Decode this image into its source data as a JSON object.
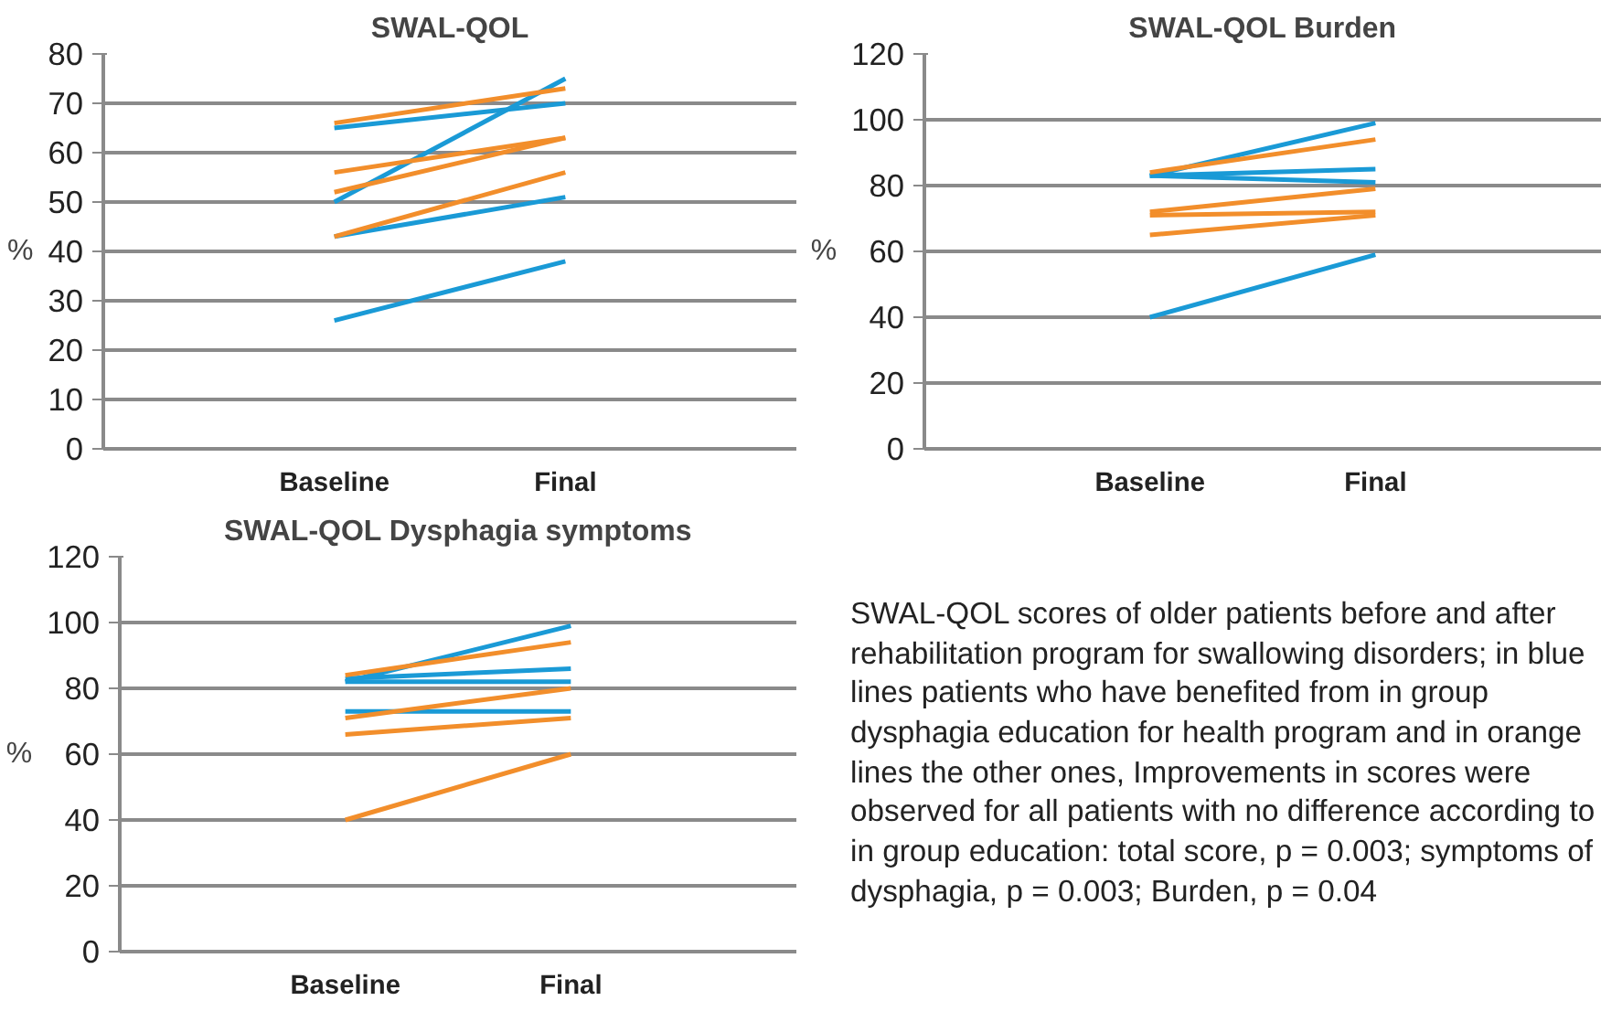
{
  "chart_data": [
    {
      "type": "line",
      "title": "SWAL-QOL",
      "ylabel": "%",
      "categories": [
        "Baseline",
        "Final"
      ],
      "ylim": [
        0,
        80
      ],
      "yticks": [
        0,
        10,
        20,
        30,
        40,
        50,
        60,
        70,
        80
      ],
      "grid": "y",
      "marker": "none",
      "line_style": "solid",
      "series": [
        {
          "color": "#1a9ad6",
          "values": [
            65,
            70
          ]
        },
        {
          "color": "#1a9ad6",
          "values": [
            50,
            75
          ]
        },
        {
          "color": "#1a9ad6",
          "values": [
            43,
            51
          ]
        },
        {
          "color": "#1a9ad6",
          "values": [
            26,
            38
          ]
        },
        {
          "color": "#f28e2b",
          "values": [
            66,
            73
          ]
        },
        {
          "color": "#f28e2b",
          "values": [
            56,
            63
          ]
        },
        {
          "color": "#f28e2b",
          "values": [
            52,
            63
          ]
        },
        {
          "color": "#f28e2b",
          "values": [
            43,
            56
          ]
        }
      ]
    },
    {
      "type": "line",
      "title": "SWAL-QOL Burden",
      "ylabel": "%",
      "categories": [
        "Baseline",
        "Final"
      ],
      "ylim": [
        0,
        120
      ],
      "yticks": [
        0,
        20,
        40,
        60,
        80,
        100,
        120
      ],
      "grid": "y",
      "marker": "none",
      "line_style": "solid",
      "series": [
        {
          "color": "#1a9ad6",
          "values": [
            83,
            99
          ]
        },
        {
          "color": "#1a9ad6",
          "values": [
            83,
            85
          ]
        },
        {
          "color": "#1a9ad6",
          "values": [
            83,
            81
          ]
        },
        {
          "color": "#1a9ad6",
          "values": [
            40,
            59
          ]
        },
        {
          "color": "#f28e2b",
          "values": [
            84,
            94
          ]
        },
        {
          "color": "#f28e2b",
          "values": [
            72,
            79
          ]
        },
        {
          "color": "#f28e2b",
          "values": [
            71,
            72
          ]
        },
        {
          "color": "#f28e2b",
          "values": [
            65,
            71
          ]
        }
      ]
    },
    {
      "type": "line",
      "title": "SWAL-QOL Dysphagia symptoms",
      "ylabel": "%",
      "categories": [
        "Baseline",
        "Final"
      ],
      "ylim": [
        0,
        120
      ],
      "yticks": [
        0,
        20,
        40,
        60,
        80,
        100,
        120
      ],
      "grid": "y",
      "marker": "none",
      "line_style": "solid",
      "series": [
        {
          "color": "#1a9ad6",
          "values": [
            82,
            99
          ]
        },
        {
          "color": "#1a9ad6",
          "values": [
            83,
            86
          ]
        },
        {
          "color": "#1a9ad6",
          "values": [
            82,
            82
          ]
        },
        {
          "color": "#1a9ad6",
          "values": [
            73,
            73
          ]
        },
        {
          "color": "#f28e2b",
          "values": [
            84,
            94
          ]
        },
        {
          "color": "#f28e2b",
          "values": [
            71,
            80
          ]
        },
        {
          "color": "#f28e2b",
          "values": [
            66,
            71
          ]
        },
        {
          "color": "#f28e2b",
          "values": [
            40,
            60
          ]
        }
      ]
    },
    {
      "type": "other",
      "annotations": [
        "SWAL-QOL scores of older patients before and after rehabilitation program for swallowing disorders; in blue lines patients who have benefited from in group dysphagia education for health program and in orange lines the other ones, Improvements in scores were observed for all patients with no difference according to in group education: total score, p = 0.003; symptoms of dysphagia, p = 0.003; Burden, p = 0.04"
      ]
    }
  ]
}
